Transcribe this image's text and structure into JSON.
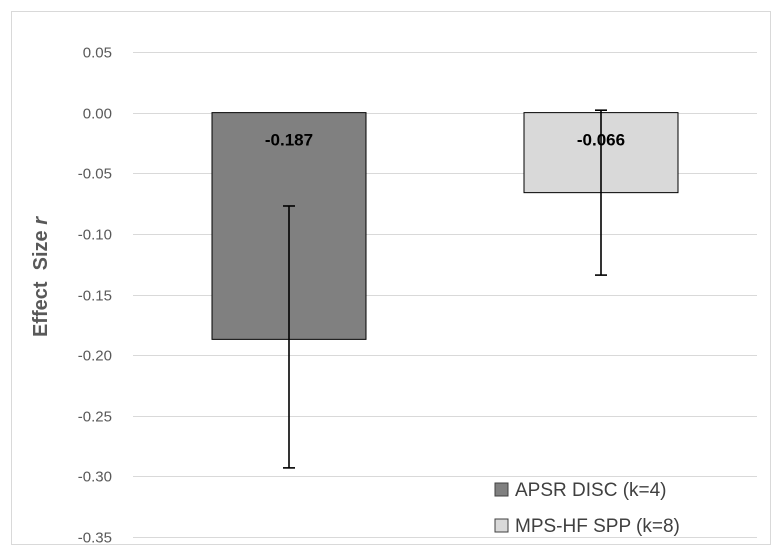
{
  "chart_data": {
    "type": "bar",
    "categories": [
      "APSR DISC (k=4)",
      "MPS-HF SPP (k=8)"
    ],
    "values": [
      -0.187,
      -0.066
    ],
    "data_labels": [
      "-0.187",
      "-0.066"
    ],
    "error_bars": [
      {
        "low": -0.293,
        "high": -0.077
      },
      {
        "low": -0.134,
        "high": 0.002
      }
    ],
    "ylabel_prefix": "Effect  Size ",
    "ylabel_var": "r",
    "ylim": [
      -0.35,
      0.05
    ],
    "yticks": [
      0.05,
      0.0,
      -0.05,
      -0.1,
      -0.15,
      -0.2,
      -0.25,
      -0.3,
      -0.35
    ],
    "ytick_labels": [
      "0.05",
      "0.00",
      "-0.05",
      "-0.10",
      "-0.15",
      "-0.20",
      "-0.25",
      "-0.30",
      "-0.35"
    ],
    "grid": true,
    "legend_position": "bottom-right",
    "colors": [
      "#808080",
      "#d9d9d9"
    ]
  }
}
